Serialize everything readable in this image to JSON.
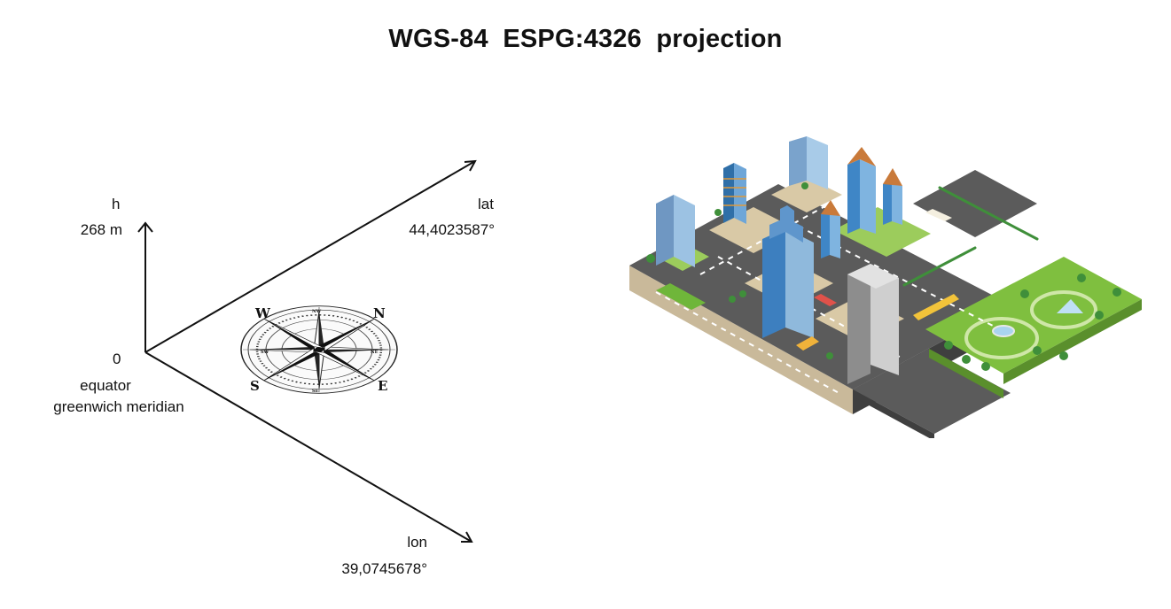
{
  "title": "WGS-84  ESPG:4326  projection",
  "axes": {
    "h": {
      "name": "h",
      "value": "268 m"
    },
    "lat": {
      "name": "lat",
      "value": "44,4023587°"
    },
    "lon": {
      "name": "lon",
      "value": "39,0745678°"
    },
    "origin": {
      "value": "0",
      "line1": "equator",
      "line2": "greenwich meridian"
    }
  },
  "compass": {
    "n": "N",
    "e": "E",
    "s": "S",
    "w": "W",
    "nw": "NW",
    "ne": "NE",
    "se": "SE",
    "sw": "SW"
  },
  "colors": {
    "road": "#5b5b5b",
    "grass": "#7fbf3f",
    "glass": "#8fb9dc",
    "text": "#111111"
  }
}
